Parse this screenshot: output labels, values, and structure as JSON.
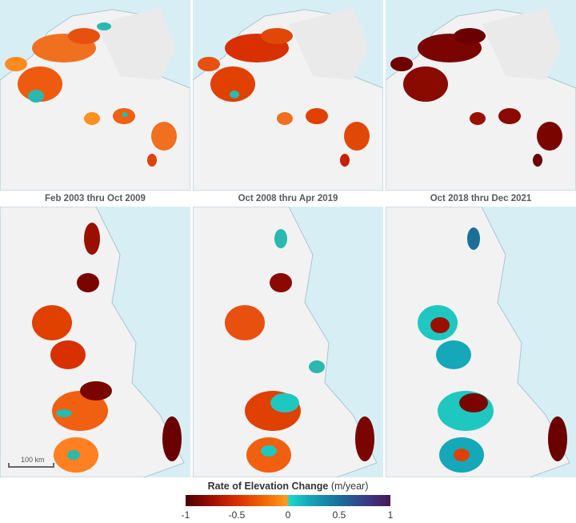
{
  "periods": [
    "Feb 2003 thru Oct 2009",
    "Oct 2008 thru Apr 2019",
    "Oct 2018 thru Dec 2021"
  ],
  "scale_bar": "100 km",
  "legend": {
    "title": "Rate of Elevation Change",
    "unit": "(m/year)",
    "ticks": [
      "-1",
      "-0.5",
      "0",
      "0.5",
      "1"
    ],
    "range": [
      -1,
      1
    ],
    "colors": {
      "strong_loss": "#5a0000",
      "loss": "#e04000",
      "mild_loss": "#ff8c1a",
      "gain": "#1ec8c0",
      "strong_gain": "#4a1757"
    }
  },
  "colors": {
    "ocean": "#d8eef5",
    "land": "#f2f2f2"
  }
}
